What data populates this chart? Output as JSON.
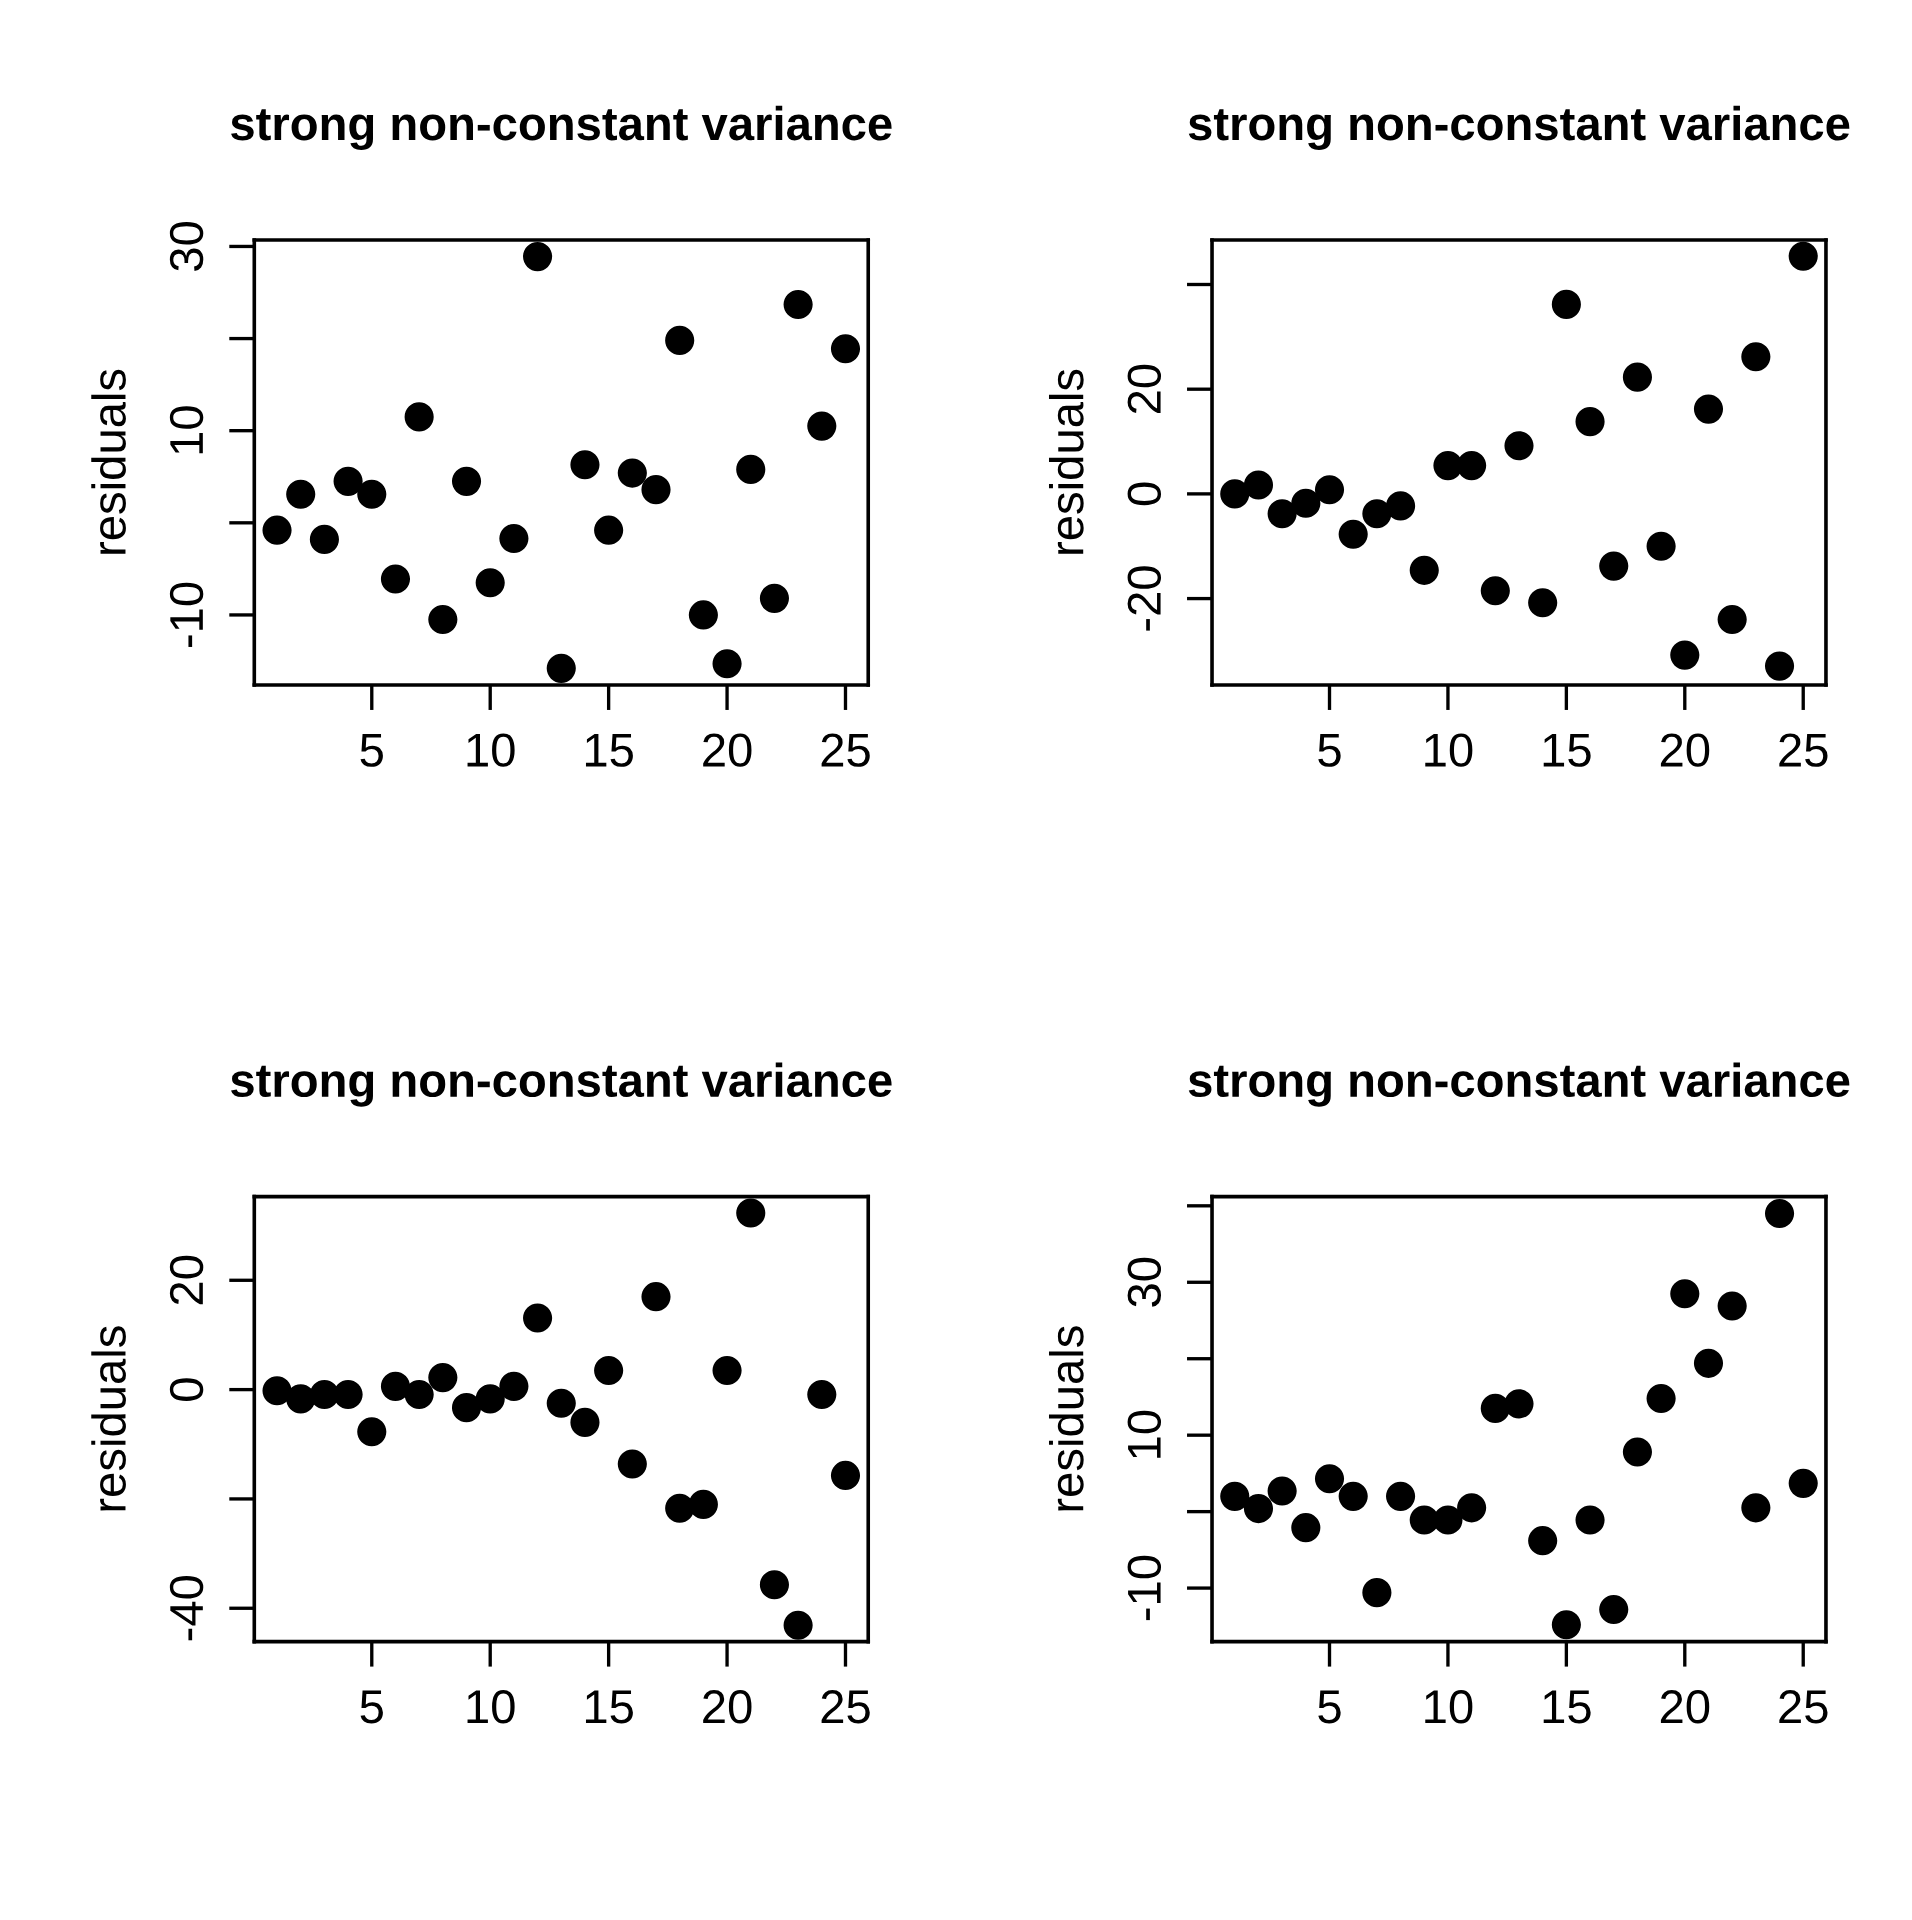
{
  "chart_data": [
    {
      "type": "scatter",
      "title": "strong non-constant variance",
      "ylabel": "residuals",
      "marker": "circle",
      "grid": false,
      "x": [
        1,
        2,
        3,
        4,
        5,
        6,
        7,
        8,
        9,
        10,
        11,
        12,
        13,
        14,
        15,
        16,
        17,
        18,
        19,
        20,
        21,
        22,
        23,
        24,
        25
      ],
      "series": [
        {
          "color": "#000000",
          "values": [
            -0.8,
            3.1,
            -1.8,
            4.5,
            3.1,
            -6.1,
            11.5,
            -10.5,
            4.5,
            -6.5,
            -1.7,
            28.9,
            -15.8,
            6.3,
            -0.8,
            5.4,
            3.6,
            19.8,
            -10,
            -15.3,
            5.8,
            -8.2,
            23.7,
            10.5,
            18.9
          ]
        }
      ],
      "xlim": [
        0.04,
        25.96
      ],
      "xticks": [
        5,
        10,
        15,
        20,
        25
      ],
      "ylim": [
        -17.6,
        30.7
      ],
      "yticks": [
        -10,
        {
          "value": 0,
          "label": null
        },
        10,
        {
          "value": 20,
          "label": null
        },
        30
      ]
    },
    {
      "type": "scatter",
      "title": "strong non-constant variance",
      "ylabel": "residuals",
      "marker": "circle",
      "grid": false,
      "x": [
        1,
        2,
        3,
        4,
        5,
        6,
        7,
        8,
        9,
        10,
        11,
        12,
        13,
        14,
        15,
        16,
        17,
        18,
        19,
        20,
        21,
        22,
        23,
        24,
        25
      ],
      "series": [
        {
          "color": "#000000",
          "values": [
            0,
            1.7,
            -3.8,
            -1.8,
            0.8,
            -7.7,
            -3.8,
            -2.3,
            -14.6,
            5.4,
            5.4,
            -18.5,
            9.2,
            -20.8,
            36.2,
            13.8,
            -13.8,
            22.3,
            -10,
            -30.8,
            16.2,
            -24,
            26.2,
            -32.9,
            45.4
          ]
        }
      ],
      "xlim": [
        0.04,
        25.96
      ],
      "xticks": [
        5,
        10,
        15,
        20,
        25
      ],
      "ylim": [
        -36.5,
        48.5
      ],
      "yticks": [
        -20,
        0,
        20,
        {
          "value": 40,
          "label": null
        }
      ]
    },
    {
      "type": "scatter",
      "title": "strong non-constant variance",
      "ylabel": "residuals",
      "marker": "circle",
      "grid": false,
      "x": [
        1,
        2,
        3,
        4,
        5,
        6,
        7,
        8,
        9,
        10,
        11,
        12,
        13,
        14,
        15,
        16,
        17,
        18,
        19,
        20,
        21,
        22,
        23,
        24,
        25
      ],
      "series": [
        {
          "color": "#000000",
          "values": [
            -0.2,
            -1.7,
            -0.9,
            -0.9,
            -7.7,
            0.6,
            -0.9,
            2.2,
            -3.3,
            -1.7,
            0.6,
            13.1,
            -2.5,
            -6,
            3.5,
            -13.6,
            17,
            -21.7,
            -21,
            3.5,
            32.3,
            -35.7,
            -43.1,
            -0.9,
            -15.7
          ]
        }
      ],
      "xlim": [
        0.04,
        25.96
      ],
      "xticks": [
        5,
        10,
        15,
        20,
        25
      ],
      "ylim": [
        -46.1,
        35.3
      ],
      "yticks": [
        -40,
        {
          "value": -20,
          "label": null
        },
        0,
        20
      ]
    },
    {
      "type": "scatter",
      "title": "strong non-constant variance",
      "ylabel": "residuals",
      "marker": "circle",
      "grid": false,
      "x": [
        1,
        2,
        3,
        4,
        5,
        6,
        7,
        8,
        9,
        10,
        11,
        12,
        13,
        14,
        15,
        16,
        17,
        18,
        19,
        20,
        21,
        22,
        23,
        24,
        25
      ],
      "series": [
        {
          "color": "#000000",
          "values": [
            2.0,
            0.4,
            2.7,
            -2.1,
            4.3,
            2.0,
            -10.6,
            2.0,
            -1.1,
            -1.1,
            0.5,
            13.5,
            14.1,
            -3.8,
            -14.8,
            -1.1,
            -12.8,
            7.8,
            14.8,
            28.5,
            19.4,
            26.9,
            0.5,
            39,
            3.7
          ]
        }
      ],
      "xlim": [
        0.04,
        25.96
      ],
      "xticks": [
        5,
        10,
        15,
        20,
        25
      ],
      "ylim": [
        -17.0,
        41.2
      ],
      "yticks": [
        -10,
        {
          "value": 0,
          "label": null
        },
        10,
        {
          "value": 20,
          "label": null
        },
        30,
        {
          "value": 40,
          "label": null
        }
      ]
    }
  ]
}
